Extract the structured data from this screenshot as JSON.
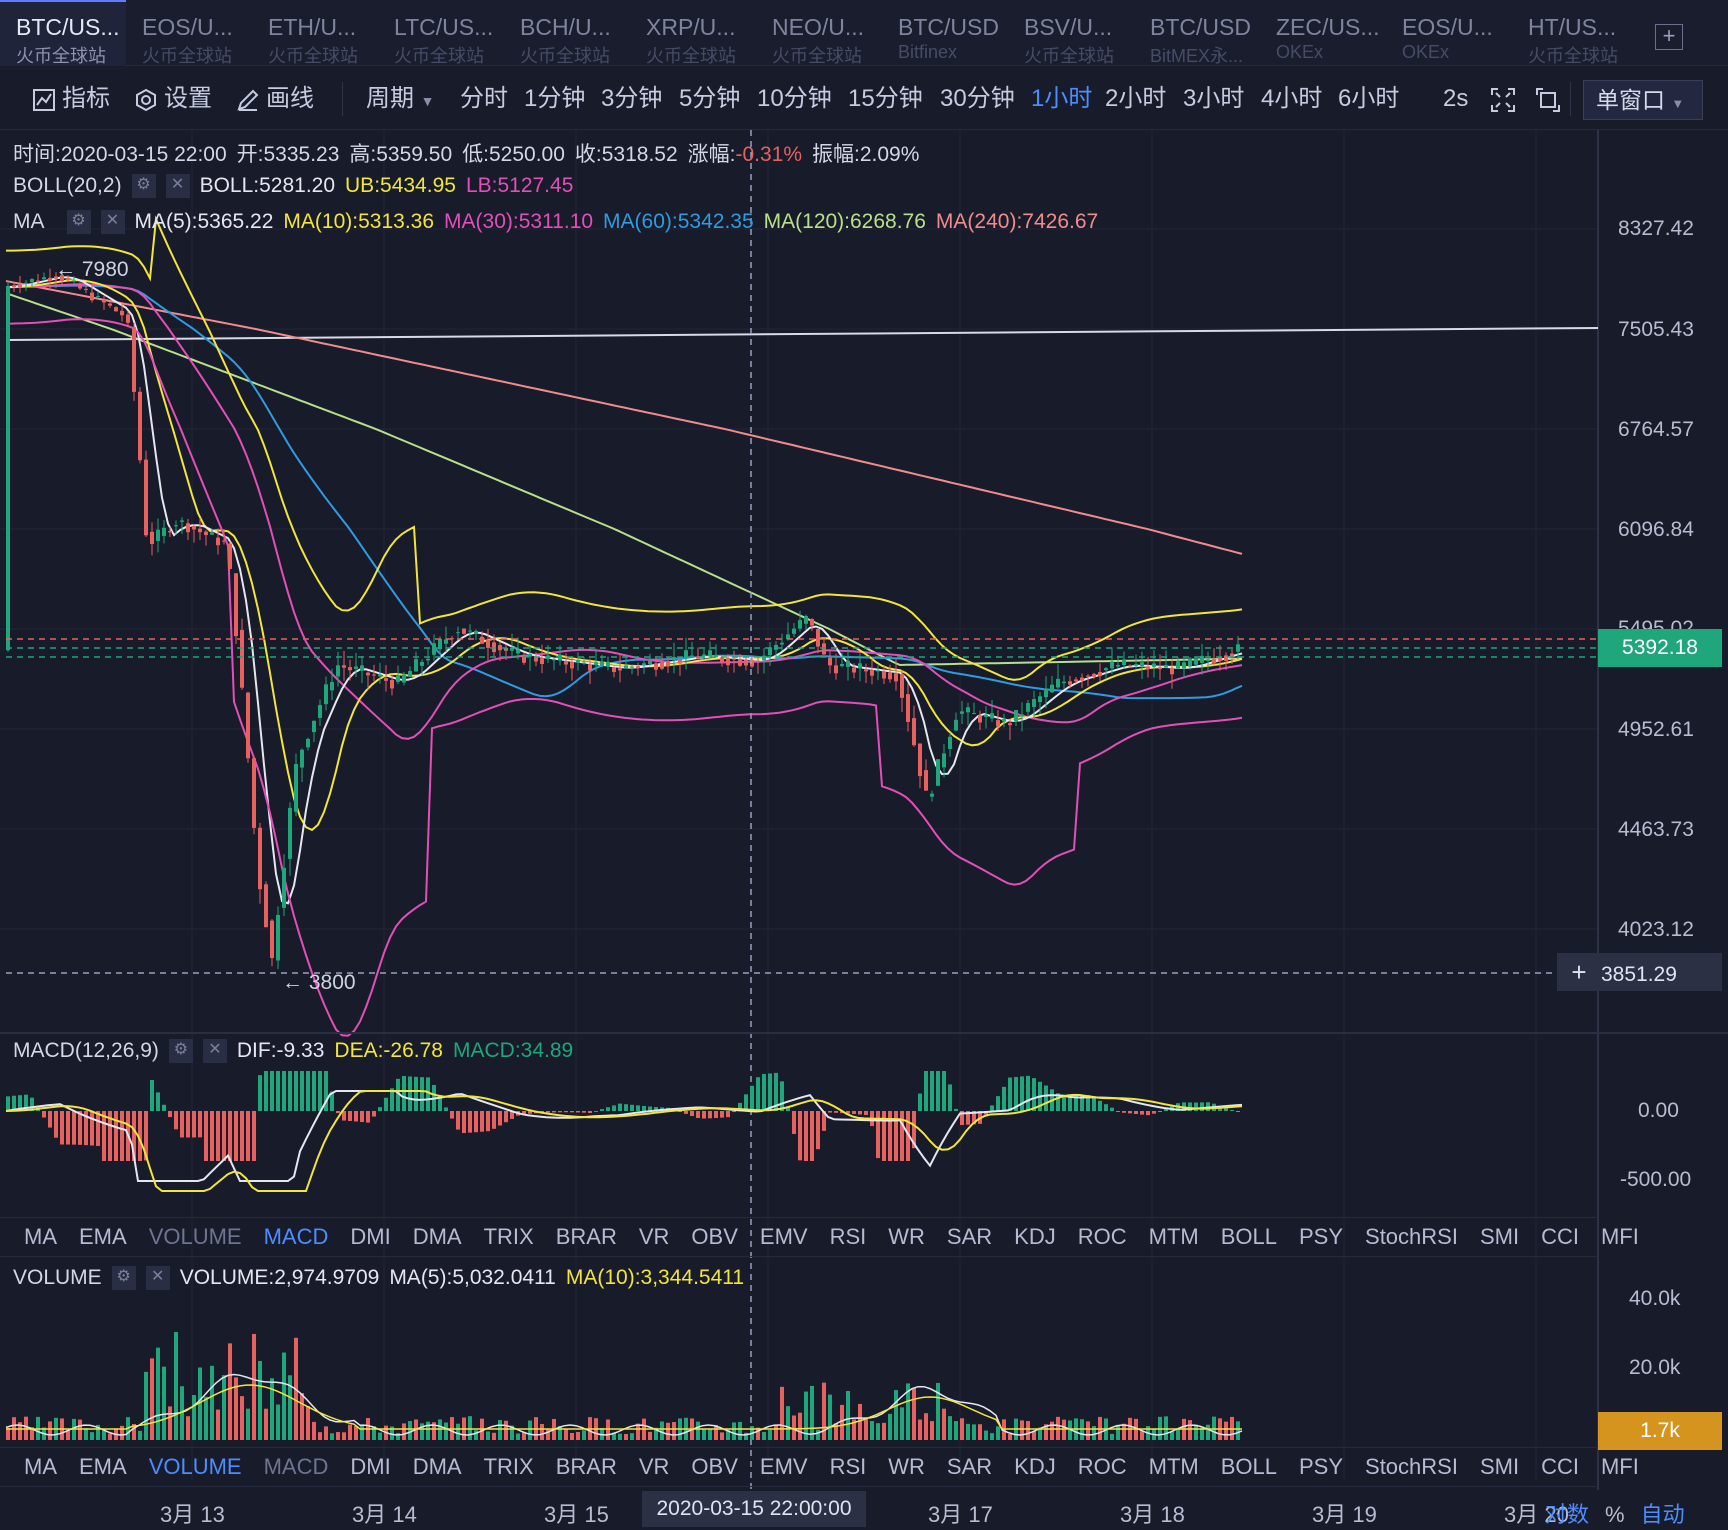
{
  "tabs": [
    {
      "symbol": "BTC/US...",
      "exchange": "火币全球站",
      "active": true
    },
    {
      "symbol": "EOS/U...",
      "exchange": "火币全球站"
    },
    {
      "symbol": "ETH/U...",
      "exchange": "火币全球站"
    },
    {
      "symbol": "LTC/US...",
      "exchange": "火币全球站"
    },
    {
      "symbol": "BCH/U...",
      "exchange": "火币全球站"
    },
    {
      "symbol": "XRP/U...",
      "exchange": "火币全球站"
    },
    {
      "symbol": "NEO/U...",
      "exchange": "火币全球站"
    },
    {
      "symbol": "BTC/USD",
      "exchange": "Bitfinex"
    },
    {
      "symbol": "BSV/U...",
      "exchange": "火币全球站"
    },
    {
      "symbol": "BTC/USD",
      "exchange": "BitMEX永..."
    },
    {
      "symbol": "ZEC/US...",
      "exchange": "OKEx"
    },
    {
      "symbol": "EOS/U...",
      "exchange": "OKEx"
    },
    {
      "symbol": "HT/US...",
      "exchange": "火币全球站"
    }
  ],
  "add_tab": "+",
  "toolbar": {
    "indicators": "指标",
    "settings": "设置",
    "draw": "画线",
    "period": "周期",
    "periods": [
      "分时",
      "1分钟",
      "3分钟",
      "5分钟",
      "10分钟",
      "15分钟",
      "30分钟",
      "1小时",
      "2小时",
      "3小时",
      "4小时",
      "6小时"
    ],
    "active_period": "1小时",
    "refresh": "2s",
    "window_mode": "单窗口"
  },
  "ohlc": {
    "time": "时间:2020-03-15 22:00",
    "open": "开:5335.23",
    "high": "高:5359.50",
    "low": "低:5250.00",
    "close": "收:5318.52",
    "change_label": "涨幅:",
    "change": "-0.31%",
    "amplitude": "振幅:2.09%"
  },
  "boll": {
    "name": "BOLL(20,2)",
    "mid": "BOLL:5281.20",
    "ub": "UB:5434.95",
    "lb": "LB:5127.45"
  },
  "ma": {
    "name": "MA",
    "ma5": "MA(5):5365.22",
    "ma10": "MA(10):5313.36",
    "ma30": "MA(30):5311.10",
    "ma60": "MA(60):5342.35",
    "ma120": "MA(120):6268.76",
    "ma240": "MA(240):7426.67"
  },
  "price_axis": [
    "8327.42",
    "7505.43",
    "6764.57",
    "6096.84",
    "5495.02",
    "4952.61",
    "4463.73",
    "4023.12"
  ],
  "current_price": "5392.18",
  "crosshair_price": "3851.29",
  "crosshair_plus": "+",
  "markers": {
    "high": "← 7980",
    "low": "← 3800"
  },
  "macd": {
    "name": "MACD(12,26,9)",
    "dif": "DIF:-9.33",
    "dea": "DEA:-26.78",
    "macd": "MACD:34.89",
    "axis": [
      "0.00",
      "-500.00"
    ]
  },
  "indicator_tabs": [
    "MA",
    "EMA",
    "VOLUME",
    "MACD",
    "DMI",
    "DMA",
    "TRIX",
    "BRAR",
    "VR",
    "OBV",
    "EMV",
    "RSI",
    "WR",
    "SAR",
    "KDJ",
    "ROC",
    "MTM",
    "BOLL",
    "PSY",
    "StochRSI",
    "SMI",
    "CCI",
    "MFI"
  ],
  "volume": {
    "name": "VOLUME",
    "volume": "VOLUME:2,974.9709",
    "ma5": "MA(5):5,032.0411",
    "ma10": "MA(10):3,344.5411",
    "axis": [
      "40.0k",
      "20.0k"
    ],
    "current": "1.7k"
  },
  "dates": [
    "3月 13",
    "3月 14",
    "3月 15",
    "3月 17",
    "3月 18",
    "3月 19",
    "3月 20"
  ],
  "crosshair_time": "2020-03-15 22:00:00",
  "bottom_controls": [
    "对数",
    "%",
    "自动"
  ],
  "colors": {
    "up": "#1fa67a",
    "down": "#e7615f",
    "accent": "#4d8dff",
    "ma5": "#e6e6f0",
    "ma10": "#f2e53b",
    "ma30": "#e34fb9",
    "ma60": "#2f9be0",
    "ma120": "#b8e08a",
    "ma240": "#f28c8c",
    "boll_mid": "#e6e6f0",
    "boll_ub": "#f2e53b",
    "boll_lb": "#e34fb9"
  }
}
